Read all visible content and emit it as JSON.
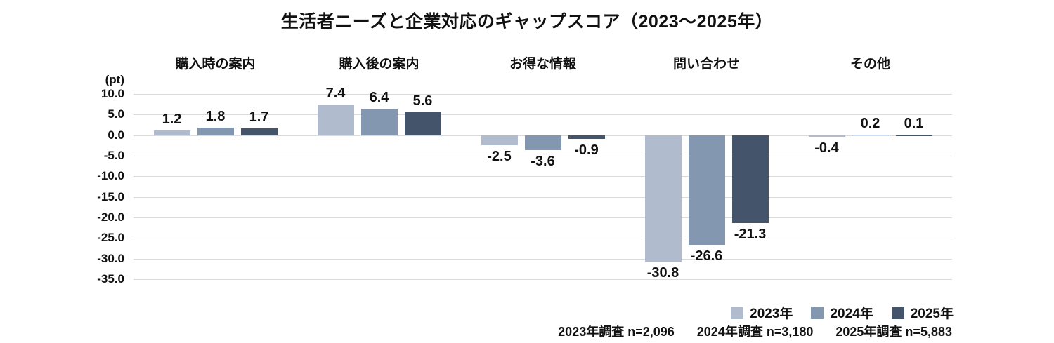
{
  "title": "生活者ニーズと企業対応のギャップスコア（2023～2025年）",
  "y_axis": {
    "unit_label": "(pt)",
    "max": 10,
    "min": -35,
    "step": 5,
    "tick_labels": [
      "10.0",
      "5.0",
      "0.0",
      "-5.0",
      "-10.0",
      "-15.0",
      "-20.0",
      "-25.0",
      "-30.0",
      "-35.0"
    ]
  },
  "legend": [
    {
      "label": "2023年",
      "color": "#b0bccd"
    },
    {
      "label": "2024年",
      "color": "#8497b0"
    },
    {
      "label": "2025年",
      "color": "#44546a"
    }
  ],
  "footer_notes": [
    "2023年調査 n=2,096",
    "2024年調査 n=3,180",
    "2025年調査 n=5,883"
  ],
  "chart_data": {
    "type": "bar",
    "title": "生活者ニーズと企業対応のギャップスコア（2023～2025年）",
    "categories": [
      "購入時の案内",
      "購入後の案内",
      "お得な情報",
      "問い合わせ",
      "その他"
    ],
    "series": [
      {
        "name": "2023年",
        "color": "#b0bccd",
        "values": [
          1.2,
          7.4,
          -2.5,
          -30.8,
          -0.4
        ]
      },
      {
        "name": "2024年",
        "color": "#8497b0",
        "values": [
          1.8,
          6.4,
          -3.6,
          -26.6,
          0.2
        ]
      },
      {
        "name": "2025年",
        "color": "#44546a",
        "values": [
          1.7,
          5.6,
          -0.9,
          -21.3,
          0.1
        ]
      }
    ],
    "ylabel": "(pt)",
    "ylim": [
      -35,
      10
    ],
    "grid": true,
    "value_labels": true,
    "legend_position": "bottom-right"
  }
}
